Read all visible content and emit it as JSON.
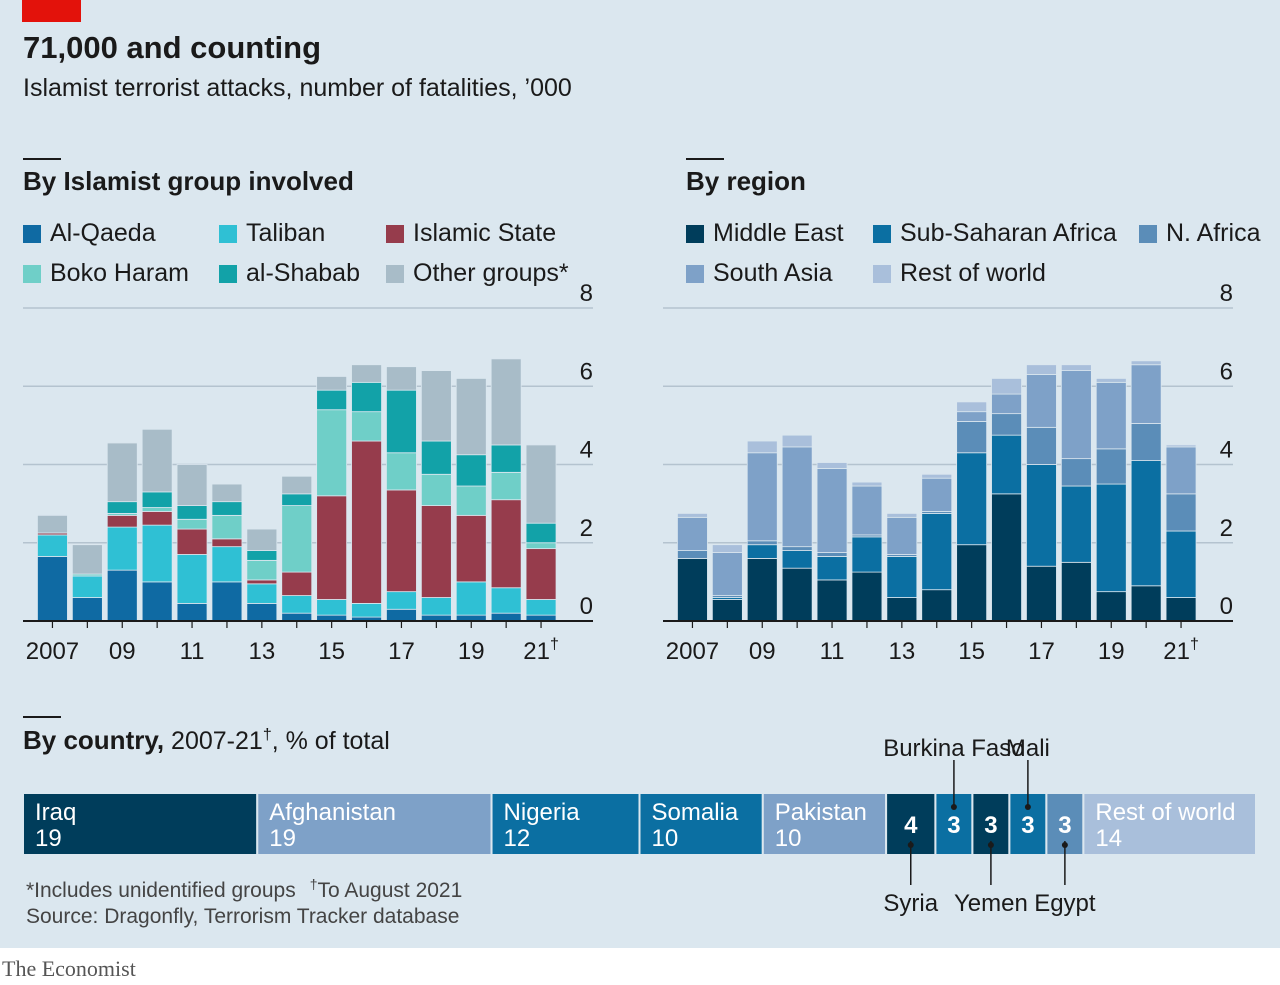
{
  "header": {
    "title": "71,000 and counting",
    "subtitle": "Islamist terrorist attacks, number of fatalities, ’000"
  },
  "colors": {
    "accent_red": "#e3120b",
    "background": "#dbe7ef",
    "al_qaeda": "#0f6aa3",
    "taliban": "#2fc0d4",
    "islamic_state": "#963c4c",
    "boko_haram": "#6fcfc8",
    "al_shabab": "#12a2a8",
    "other_groups": "#a8bcc8",
    "middle_east": "#003d5b",
    "sub_saharan_africa": "#0b6fa2",
    "n_africa": "#5b8db8",
    "south_asia": "#7ea1c8",
    "rest_of_world": "#a9bfdb"
  },
  "chart_data": [
    {
      "type": "bar",
      "stacked": true,
      "title": "By Islamist group involved",
      "xlabel": "",
      "ylabel": "",
      "ylim": [
        0,
        8
      ],
      "yticks": [
        "0",
        "2",
        "4",
        "6",
        "8"
      ],
      "x": [
        2007,
        2008,
        2009,
        2010,
        2011,
        2012,
        2013,
        2014,
        2015,
        2016,
        2017,
        2018,
        2019,
        2020,
        2021
      ],
      "xtick_labels": [
        "2007",
        "09",
        "11",
        "13",
        "15",
        "17",
        "19",
        "21"
      ],
      "dagger": "†",
      "legend_position": "top",
      "series": [
        {
          "name": "Al-Qaeda",
          "values": [
            1.65,
            0.6,
            1.3,
            1.0,
            0.45,
            1.0,
            0.45,
            0.2,
            0.15,
            0.1,
            0.3,
            0.15,
            0.15,
            0.2,
            0.15
          ]
        },
        {
          "name": "Taliban",
          "values": [
            0.55,
            0.55,
            1.1,
            1.45,
            1.25,
            0.9,
            0.5,
            0.45,
            0.4,
            0.35,
            0.45,
            0.45,
            0.85,
            0.65,
            0.4
          ]
        },
        {
          "name": "Islamic State",
          "values": [
            0.05,
            0.0,
            0.3,
            0.35,
            0.65,
            0.2,
            0.1,
            0.6,
            2.65,
            4.15,
            2.6,
            2.35,
            1.7,
            2.25,
            1.3
          ]
        },
        {
          "name": "Boko Haram",
          "values": [
            0.0,
            0.05,
            0.05,
            0.1,
            0.25,
            0.6,
            0.5,
            1.7,
            2.2,
            0.75,
            0.95,
            0.8,
            0.75,
            0.7,
            0.15
          ]
        },
        {
          "name": "al-Shabab",
          "values": [
            0.0,
            0.0,
            0.3,
            0.4,
            0.35,
            0.35,
            0.25,
            0.3,
            0.5,
            0.75,
            1.6,
            0.85,
            0.8,
            0.7,
            0.5
          ]
        },
        {
          "name": "Other groups*",
          "values": [
            0.45,
            0.75,
            1.5,
            1.6,
            1.05,
            0.45,
            0.55,
            0.45,
            0.35,
            0.45,
            0.6,
            1.8,
            1.95,
            2.2,
            2.0
          ]
        }
      ]
    },
    {
      "type": "bar",
      "stacked": true,
      "title": "By region",
      "xlabel": "",
      "ylabel": "",
      "ylim": [
        0,
        8
      ],
      "yticks": [
        "0",
        "2",
        "4",
        "6",
        "8"
      ],
      "x": [
        2007,
        2008,
        2009,
        2010,
        2011,
        2012,
        2013,
        2014,
        2015,
        2016,
        2017,
        2018,
        2019,
        2020,
        2021
      ],
      "xtick_labels": [
        "2007",
        "09",
        "11",
        "13",
        "15",
        "17",
        "19",
        "21"
      ],
      "dagger": "†",
      "legend_position": "top",
      "series": [
        {
          "name": "Middle East",
          "values": [
            1.6,
            0.55,
            1.6,
            1.35,
            1.05,
            1.25,
            0.6,
            0.8,
            1.95,
            3.25,
            1.4,
            1.5,
            0.75,
            0.9,
            0.6
          ]
        },
        {
          "name": "Sub-Saharan Africa",
          "values": [
            0.0,
            0.05,
            0.35,
            0.45,
            0.6,
            0.9,
            1.05,
            1.95,
            2.35,
            1.5,
            2.6,
            1.95,
            2.75,
            3.2,
            1.7
          ]
        },
        {
          "name": "N. Africa",
          "values": [
            0.2,
            0.05,
            0.1,
            0.1,
            0.1,
            0.05,
            0.05,
            0.05,
            0.8,
            0.55,
            0.95,
            0.7,
            0.9,
            0.95,
            0.95
          ]
        },
        {
          "name": "South Asia",
          "values": [
            0.85,
            1.1,
            2.25,
            2.55,
            2.15,
            1.25,
            0.95,
            0.85,
            0.25,
            0.5,
            1.35,
            2.25,
            1.7,
            1.5,
            1.2
          ]
        },
        {
          "name": "Rest of world",
          "values": [
            0.1,
            0.2,
            0.3,
            0.3,
            0.15,
            0.1,
            0.1,
            0.1,
            0.25,
            0.4,
            0.25,
            0.15,
            0.1,
            0.1,
            0.05
          ]
        }
      ]
    },
    {
      "type": "bar",
      "stacked": true,
      "orientation": "horizontal",
      "title": "By country,",
      "subtitle_prefix": " 2007-21",
      "subtitle_suffix": ", % of total",
      "dagger": "†",
      "segments": [
        {
          "name": "Iraq",
          "value": 19
        },
        {
          "name": "Afghanistan",
          "value": 19
        },
        {
          "name": "Nigeria",
          "value": 12
        },
        {
          "name": "Somalia",
          "value": 10
        },
        {
          "name": "Pakistan",
          "value": 10
        },
        {
          "name": "Syria",
          "value": 4
        },
        {
          "name": "Burkina Faso",
          "value": 3
        },
        {
          "name": "Yemen",
          "value": 3
        },
        {
          "name": "Mali",
          "value": 3
        },
        {
          "name": "Egypt",
          "value": 3
        },
        {
          "name": "Rest of world",
          "value": 14
        }
      ]
    }
  ],
  "footnotes": {
    "note1": "*Includes unidentified groups",
    "note2_mark": "†",
    "note2": "To August 2021",
    "source": "Source: Dragonfly, Terrorism Tracker database"
  },
  "branding": {
    "logo": "The Economist"
  }
}
